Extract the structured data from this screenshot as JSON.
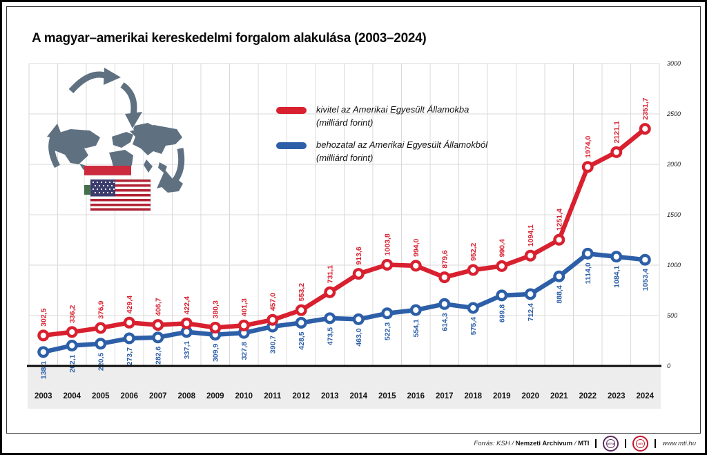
{
  "title": "A magyar–amerikai kereskedelmi forgalom alakulása (2003–2024)",
  "legend": [
    {
      "key": "exports",
      "color": "#d8202f",
      "line1": "kivitel az Amerikai Egyesült Államokba",
      "line2": "(milliárd forint)"
    },
    {
      "key": "imports",
      "color": "#2d5fa8",
      "line1": "behozatal az Amerikai Egyesült Államokból",
      "line2": "(milliárd forint)"
    }
  ],
  "chart_data": {
    "type": "line",
    "x": [
      2003,
      2004,
      2005,
      2006,
      2007,
      2008,
      2009,
      2010,
      2011,
      2012,
      2013,
      2014,
      2015,
      2016,
      2017,
      2018,
      2019,
      2020,
      2021,
      2022,
      2023,
      2024
    ],
    "series": [
      {
        "key": "exports",
        "name": "kivitel az Amerikai Egyesült Államokba (milliárd forint)",
        "color": "#d8202f",
        "values": [
          302.5,
          336.2,
          376.9,
          429.4,
          406.7,
          422.4,
          380.3,
          401.3,
          457.0,
          553.2,
          731.1,
          913.6,
          1003.8,
          994.0,
          879.6,
          952.2,
          990.4,
          1094.1,
          1251.4,
          1974.0,
          2121.1,
          2351.7
        ]
      },
      {
        "key": "imports",
        "name": "behozatal az Amerikai Egyesült Államokból (milliárd forint)",
        "color": "#2d5fa8",
        "values": [
          138.1,
          202.1,
          220.5,
          273.7,
          282.6,
          337.1,
          309.9,
          327.8,
          390.7,
          428.5,
          473.5,
          463.0,
          522.3,
          554.1,
          614.3,
          575.4,
          699.8,
          712.4,
          888.4,
          1114.0,
          1084.1,
          1053.4
        ]
      }
    ],
    "ylim": [
      0,
      3000
    ],
    "yticks": [
      0,
      500,
      1000,
      1500,
      2000,
      2500,
      3000
    ],
    "grid": true,
    "decimal_separator": ",",
    "legend_position": "top-center",
    "title": "A magyar–amerikai kereskedelmi forgalom alakulása (2003–2024)"
  },
  "graphic": {
    "map_color": "#5f7181",
    "hungary_flag_colors": [
      "#cd2a3e",
      "#ffffff",
      "#436f4d"
    ],
    "usa_flag_colors": [
      "#b22234",
      "#ffffff",
      "#3c3b6e"
    ]
  },
  "footer": {
    "source_prefix": "Forrás: KSH /",
    "source_bold1": "Nemzeti Archívum",
    "source_sep": "/",
    "source_bold2": "MTI",
    "logo1": "MTVA",
    "logo2": "MTI",
    "url": "www.mti.hu"
  }
}
